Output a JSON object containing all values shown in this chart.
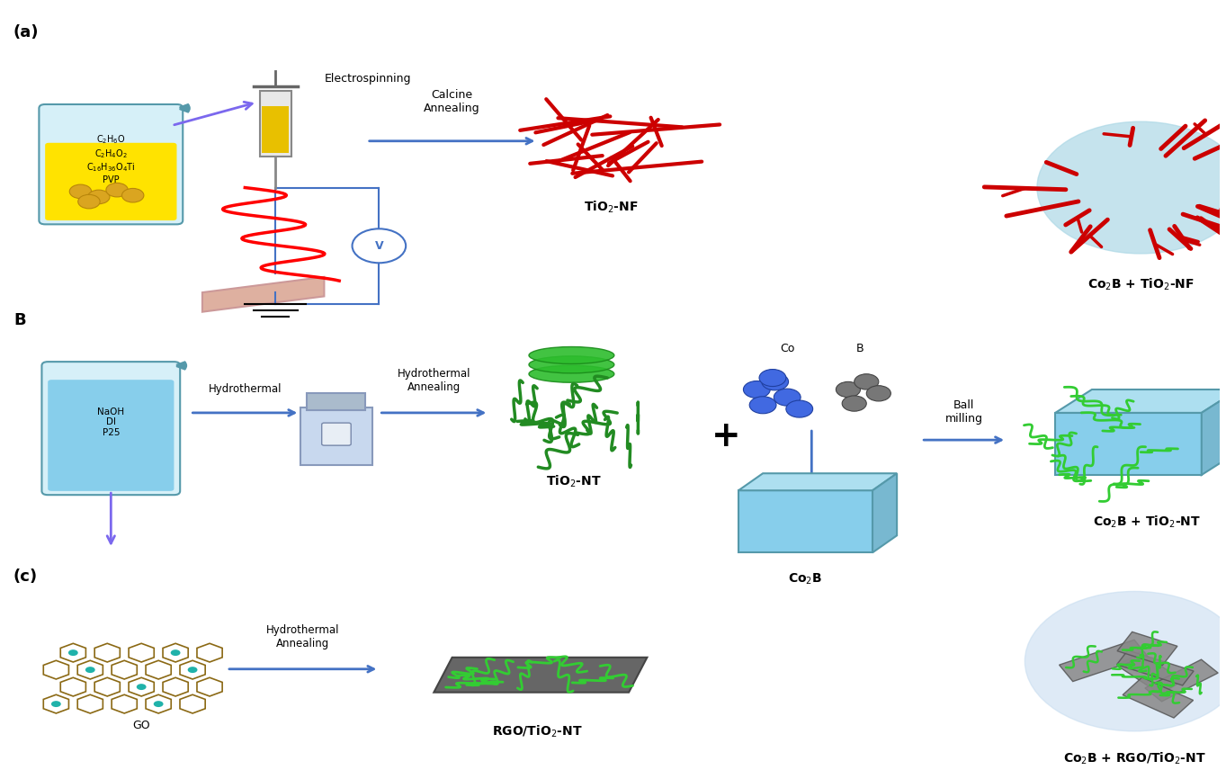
{
  "title": "",
  "background_color": "#ffffff",
  "figsize": [
    13.63,
    8.66
  ],
  "dpi": 100,
  "labels": {
    "a": "(a)",
    "b": "B",
    "c": "(c)",
    "electrospinning": "Electrospinning",
    "calcine_annealing": "Calcine\nAnnealing",
    "hydrothermal": "Hydrothermal",
    "hydrothermal_annealing": "Hydrothermal\nAnnealing",
    "hydrothermal_annealing2": "Hydrothermal\nAnnealing",
    "ball_milling": "Ball\nmilling",
    "tio2_nf": "TiO$_2$-NF",
    "tio2_nt": "TiO$_2$-NT",
    "co2b": "Co$_2$B",
    "rgo_tio2_nt": "RGO/TiO$_2$-NT",
    "co2b_tio2_nf": "Co$_2$B + TiO$_2$-NF",
    "co2b_tio2_nt": "Co$_2$B + TiO$_2$-NT",
    "co2b_rgo_tio2_nt": "Co$_2$B + RGO/TiO$_2$-NT",
    "go": "GO",
    "co": "Co",
    "beaker_a": "C$_2$H$_6$O\nC$_2$H$_4$O$_2$\nC$_{16}$H$_{36}$O$_4$Ti\nPVP",
    "beaker_b": "NaOH\nDI\nP25"
  },
  "colors": {
    "arrow_blue": "#4472C4",
    "arrow_purple": "#7B68EE",
    "text_black": "#000000",
    "beaker_yellow": "#FFE300",
    "beaker_liquid_a": "#ADD8E6",
    "beaker_body": "#B0E0E6",
    "beaker_b_liquid": "#87CEEB",
    "nanofiber_red": "#CC0000",
    "nanotube_green": "#228B22",
    "co2b_blue": "#87CEEB",
    "rgo_gray": "#808080",
    "composite_blue": "#ADD8E6",
    "voltage_circle": "#4472C4",
    "collector_pink": "#DEB0A0",
    "wire_red": "#FF0000",
    "wire_blue": "#4472C4",
    "co_blue": "#4169E1",
    "b_gray": "#696969",
    "graphene_brown": "#8B6914",
    "graphene_teal": "#20B2AA"
  },
  "positions": {
    "label_a": [
      0.02,
      0.93
    ],
    "label_b": [
      0.02,
      0.57
    ],
    "label_c": [
      0.02,
      0.25
    ]
  }
}
